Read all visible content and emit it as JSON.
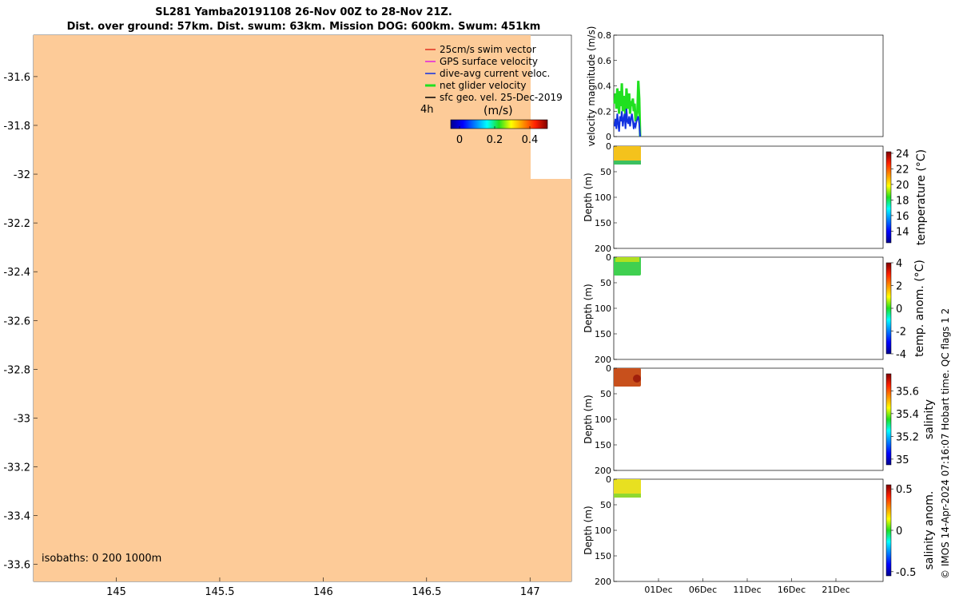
{
  "title_line1": "SL281 Yamba20191108 26-Nov 00Z to 28-Nov 21Z.",
  "title_line2": "Dist. over ground: 57km. Dist. swum: 63km. Mission DOG: 600km. Swum: 451km",
  "credit": "© IMOS 14-Apr-2024 07:16:07 Hobart time. QC flags 1  2",
  "colors": {
    "land": "#FDCB98",
    "swim_vector": "#E03020",
    "gps_velocity": "#E020E0",
    "dive_avg": "#1030E0",
    "net_glider": "#20E020",
    "sfc_geo": "#000000"
  },
  "chart_data": [
    {
      "type": "map",
      "name": "track-map",
      "x_ticks": [
        "145",
        "145.5",
        "146",
        "146.5",
        "147"
      ],
      "y_ticks": [
        "-31.6",
        "-31.8",
        "-32",
        "-32.2",
        "-32.4",
        "-32.6",
        "-32.8",
        "-33",
        "-33.2",
        "-33.4",
        "-33.6"
      ],
      "xlim": [
        144.6,
        147.2
      ],
      "ylim": [
        -33.67,
        -31.43
      ],
      "isobaths_label": "isobaths: 0   200  1000m",
      "legend": [
        {
          "label": "25cm/s swim vector",
          "color_key": "swim_vector"
        },
        {
          "label": "GPS surface velocity",
          "color_key": "gps_velocity"
        },
        {
          "label": "dive-avg current veloc.",
          "color_key": "dive_avg"
        },
        {
          "label": "net glider velocity",
          "color_key": "net_glider"
        },
        {
          "label": "sfc geo. vel. 25-Dec-2019",
          "color_key": "sfc_geo"
        }
      ],
      "time_label": "4h",
      "colorbar_label": "(m/s)",
      "colorbar_ticks": [
        "0",
        "0.2",
        "0.4"
      ],
      "colorbar_range": [
        -0.05,
        0.5
      ]
    },
    {
      "type": "line",
      "name": "velocity-panel",
      "ylabel": "velocity magnitude (m/s)",
      "ylim": [
        0,
        0.8
      ],
      "y_ticks": [
        "0",
        "0.2",
        "0.4",
        "0.6",
        "0.8"
      ],
      "series": [
        {
          "color_key": "net_glider",
          "values": [
            0.26,
            0.34,
            0.22,
            0.38,
            0.3,
            0.18,
            0.36,
            0.24,
            0.42,
            0.2,
            0.32,
            0.28,
            0.14,
            0.38,
            0.26,
            0.22,
            0.34,
            0.18,
            0.28,
            0.24,
            0.3,
            0.2,
            0.26,
            0.12,
            0.16,
            0.2,
            0.44,
            0.3,
            0.0
          ]
        },
        {
          "color_key": "dive_avg",
          "values": [
            0.08,
            0.14,
            0.06,
            0.18,
            0.1,
            0.04,
            0.16,
            0.12,
            0.2,
            0.08,
            0.14,
            0.18,
            0.06,
            0.22,
            0.12,
            0.1,
            0.16,
            0.08,
            0.14,
            0.18,
            0.12,
            0.06,
            0.1,
            0.08,
            0.12,
            0.14,
            0.16,
            0.1,
            0.0
          ]
        }
      ]
    },
    {
      "type": "heatmap",
      "name": "temperature-panel",
      "ylabel": "Depth (m)",
      "ylim": [
        0,
        200
      ],
      "y_ticks": [
        "0",
        "50",
        "100",
        "150",
        "200"
      ],
      "colorbar_label": "temperature (°C)",
      "colorbar_ticks": [
        "14",
        "16",
        "18",
        "20",
        "22",
        "24"
      ],
      "colorbar_range": [
        12.5,
        24.2
      ]
    },
    {
      "type": "heatmap",
      "name": "temp-anomaly-panel",
      "ylabel": "Depth (m)",
      "ylim": [
        0,
        200
      ],
      "y_ticks": [
        "0",
        "50",
        "100",
        "150",
        "200"
      ],
      "colorbar_label": "temp. anom. (°C)",
      "colorbar_ticks": [
        "-4",
        "-2",
        "0",
        "2",
        "4"
      ],
      "colorbar_range": [
        -4,
        4
      ]
    },
    {
      "type": "heatmap",
      "name": "salinity-panel",
      "ylabel": "Depth (m)",
      "ylim": [
        0,
        200
      ],
      "y_ticks": [
        "0",
        "50",
        "100",
        "150",
        "200"
      ],
      "colorbar_label": "salinity",
      "colorbar_ticks": [
        "35",
        "35.2",
        "35.4",
        "35.6"
      ],
      "colorbar_range": [
        34.95,
        35.75
      ]
    },
    {
      "type": "heatmap",
      "name": "salinity-anomaly-panel",
      "ylabel": "Depth (m)",
      "ylim": [
        0,
        200
      ],
      "y_ticks": [
        "0",
        "50",
        "100",
        "150",
        "200"
      ],
      "colorbar_label": "salinity anom.",
      "colorbar_ticks": [
        "-0.5",
        "0",
        "0.5"
      ],
      "colorbar_range": [
        -0.55,
        0.55
      ],
      "x_ticks": [
        "01Dec",
        "06Dec",
        "11Dec",
        "16Dec",
        "21Dec"
      ]
    }
  ]
}
